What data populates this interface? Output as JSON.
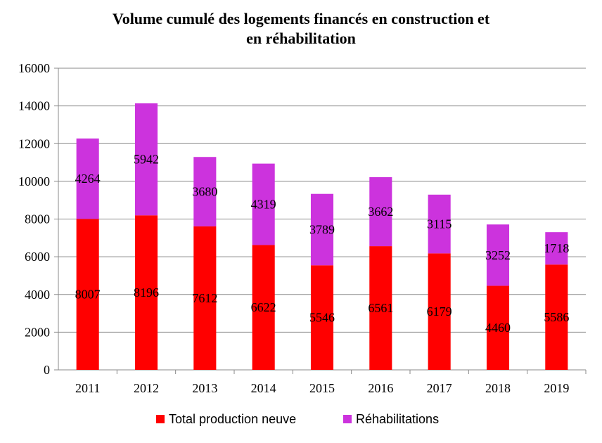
{
  "chart_data": {
    "type": "bar",
    "stacked": true,
    "title_lines": [
      "Volume cumulé des logements financés en construction et",
      "en réhabilitation"
    ],
    "categories": [
      "2011",
      "2012",
      "2013",
      "2014",
      "2015",
      "2016",
      "2017",
      "2018",
      "2019"
    ],
    "series": [
      {
        "name": "Total production neuve",
        "color": "#ff0000",
        "values": [
          8007,
          8196,
          7612,
          6622,
          5546,
          6561,
          6179,
          4460,
          5586
        ]
      },
      {
        "name": "Réhabilitations",
        "color": "#cc33dd",
        "values": [
          4264,
          5942,
          3680,
          4319,
          3789,
          3662,
          3115,
          3252,
          1718
        ]
      }
    ],
    "ylim": [
      0,
      16000
    ],
    "yticks": [
      0,
      2000,
      4000,
      6000,
      8000,
      10000,
      12000,
      14000,
      16000
    ],
    "grid": true,
    "legend_position": "bottom"
  }
}
